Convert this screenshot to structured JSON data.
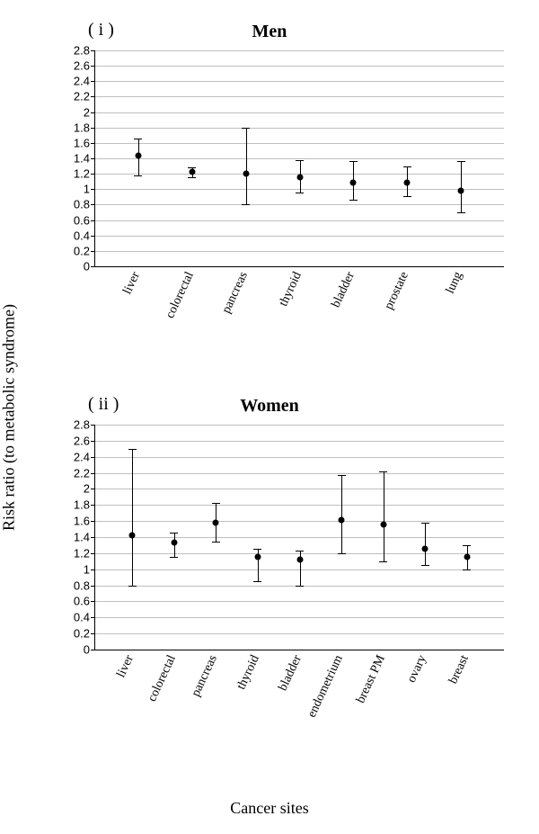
{
  "figure": {
    "ylabel": "Risk ratio (to metabolic syndrome)",
    "xlabel": "Cancer sites"
  },
  "panels": [
    {
      "tag": "( i )",
      "title": "Men",
      "plot": {
        "ylim": [
          0,
          2.8
        ],
        "ytick_step": 0.2,
        "grid_color": "#bfbfbf",
        "axis_color": "#000000",
        "categories": [
          "liver",
          "colorectal",
          "pancreas",
          "thyroid",
          "bladder",
          "prostate",
          "lung"
        ],
        "points": [
          1.43,
          1.23,
          1.2,
          1.15,
          1.09,
          1.08,
          0.98
        ],
        "err_low": [
          1.18,
          1.15,
          0.8,
          0.96,
          0.86,
          0.91,
          0.7
        ],
        "err_high": [
          1.66,
          1.28,
          1.8,
          1.38,
          1.37,
          1.29,
          1.37
        ],
        "point_color": "#000000",
        "cap_width": 9
      }
    },
    {
      "tag": "( ii )",
      "title": "Women",
      "plot": {
        "ylim": [
          0,
          2.8
        ],
        "ytick_step": 0.2,
        "grid_color": "#bfbfbf",
        "axis_color": "#000000",
        "categories": [
          "liver",
          "colorectal",
          "pancreas",
          "thyroid",
          "bladder",
          "endometrium",
          "breast PM",
          "ovary",
          "breast"
        ],
        "points": [
          1.42,
          1.33,
          1.58,
          1.15,
          1.12,
          1.61,
          1.56,
          1.26,
          1.15
        ],
        "err_low": [
          0.8,
          1.15,
          1.34,
          0.85,
          0.8,
          1.2,
          1.1,
          1.05,
          1.0
        ],
        "err_high": [
          2.5,
          1.46,
          1.83,
          1.25,
          1.23,
          2.17,
          2.22,
          1.58,
          1.3
        ],
        "point_color": "#000000",
        "cap_width": 9
      }
    }
  ]
}
